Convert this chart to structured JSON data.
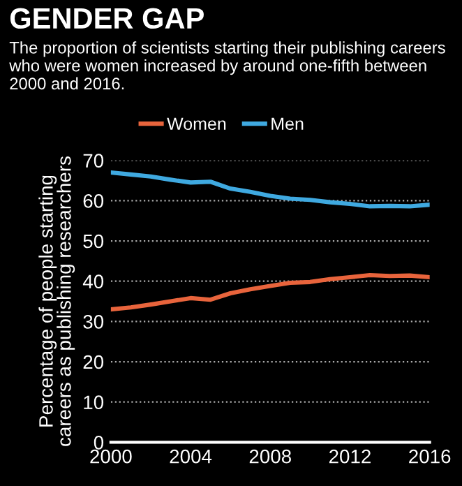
{
  "chart_data": {
    "type": "line",
    "title": "GENDER GAP",
    "subtitle": "The proportion of scientists starting their publishing careers who were women increased by around one-fifth between 2000 and 2016.",
    "ylabel": "Percentage of people starting\ncareers as publishing researchers",
    "x": [
      2000,
      2001,
      2002,
      2003,
      2004,
      2005,
      2006,
      2007,
      2008,
      2009,
      2010,
      2011,
      2012,
      2013,
      2014,
      2015,
      2016
    ],
    "series": [
      {
        "name": "Women",
        "color": "#e8643c",
        "values": [
          33,
          33.5,
          34.2,
          35,
          35.8,
          35.4,
          37,
          38,
          38.8,
          39.6,
          39.8,
          40.5,
          41,
          41.5,
          41.3,
          41.4,
          41
        ]
      },
      {
        "name": "Men",
        "color": "#3fa9e0",
        "values": [
          67,
          66.5,
          66,
          65.2,
          64.5,
          64.7,
          63,
          62.2,
          61.2,
          60.5,
          60.2,
          59.6,
          59.2,
          58.6,
          58.7,
          58.6,
          59
        ]
      }
    ],
    "xlim": [
      2000,
      2016
    ],
    "xticks": [
      2000,
      2004,
      2008,
      2012,
      2016
    ],
    "ylim": [
      0,
      70
    ],
    "yticks": [
      0,
      10,
      20,
      30,
      40,
      50,
      60,
      70
    ],
    "grid": "y",
    "legend": "top",
    "line_style": "solid",
    "marker": "none"
  }
}
